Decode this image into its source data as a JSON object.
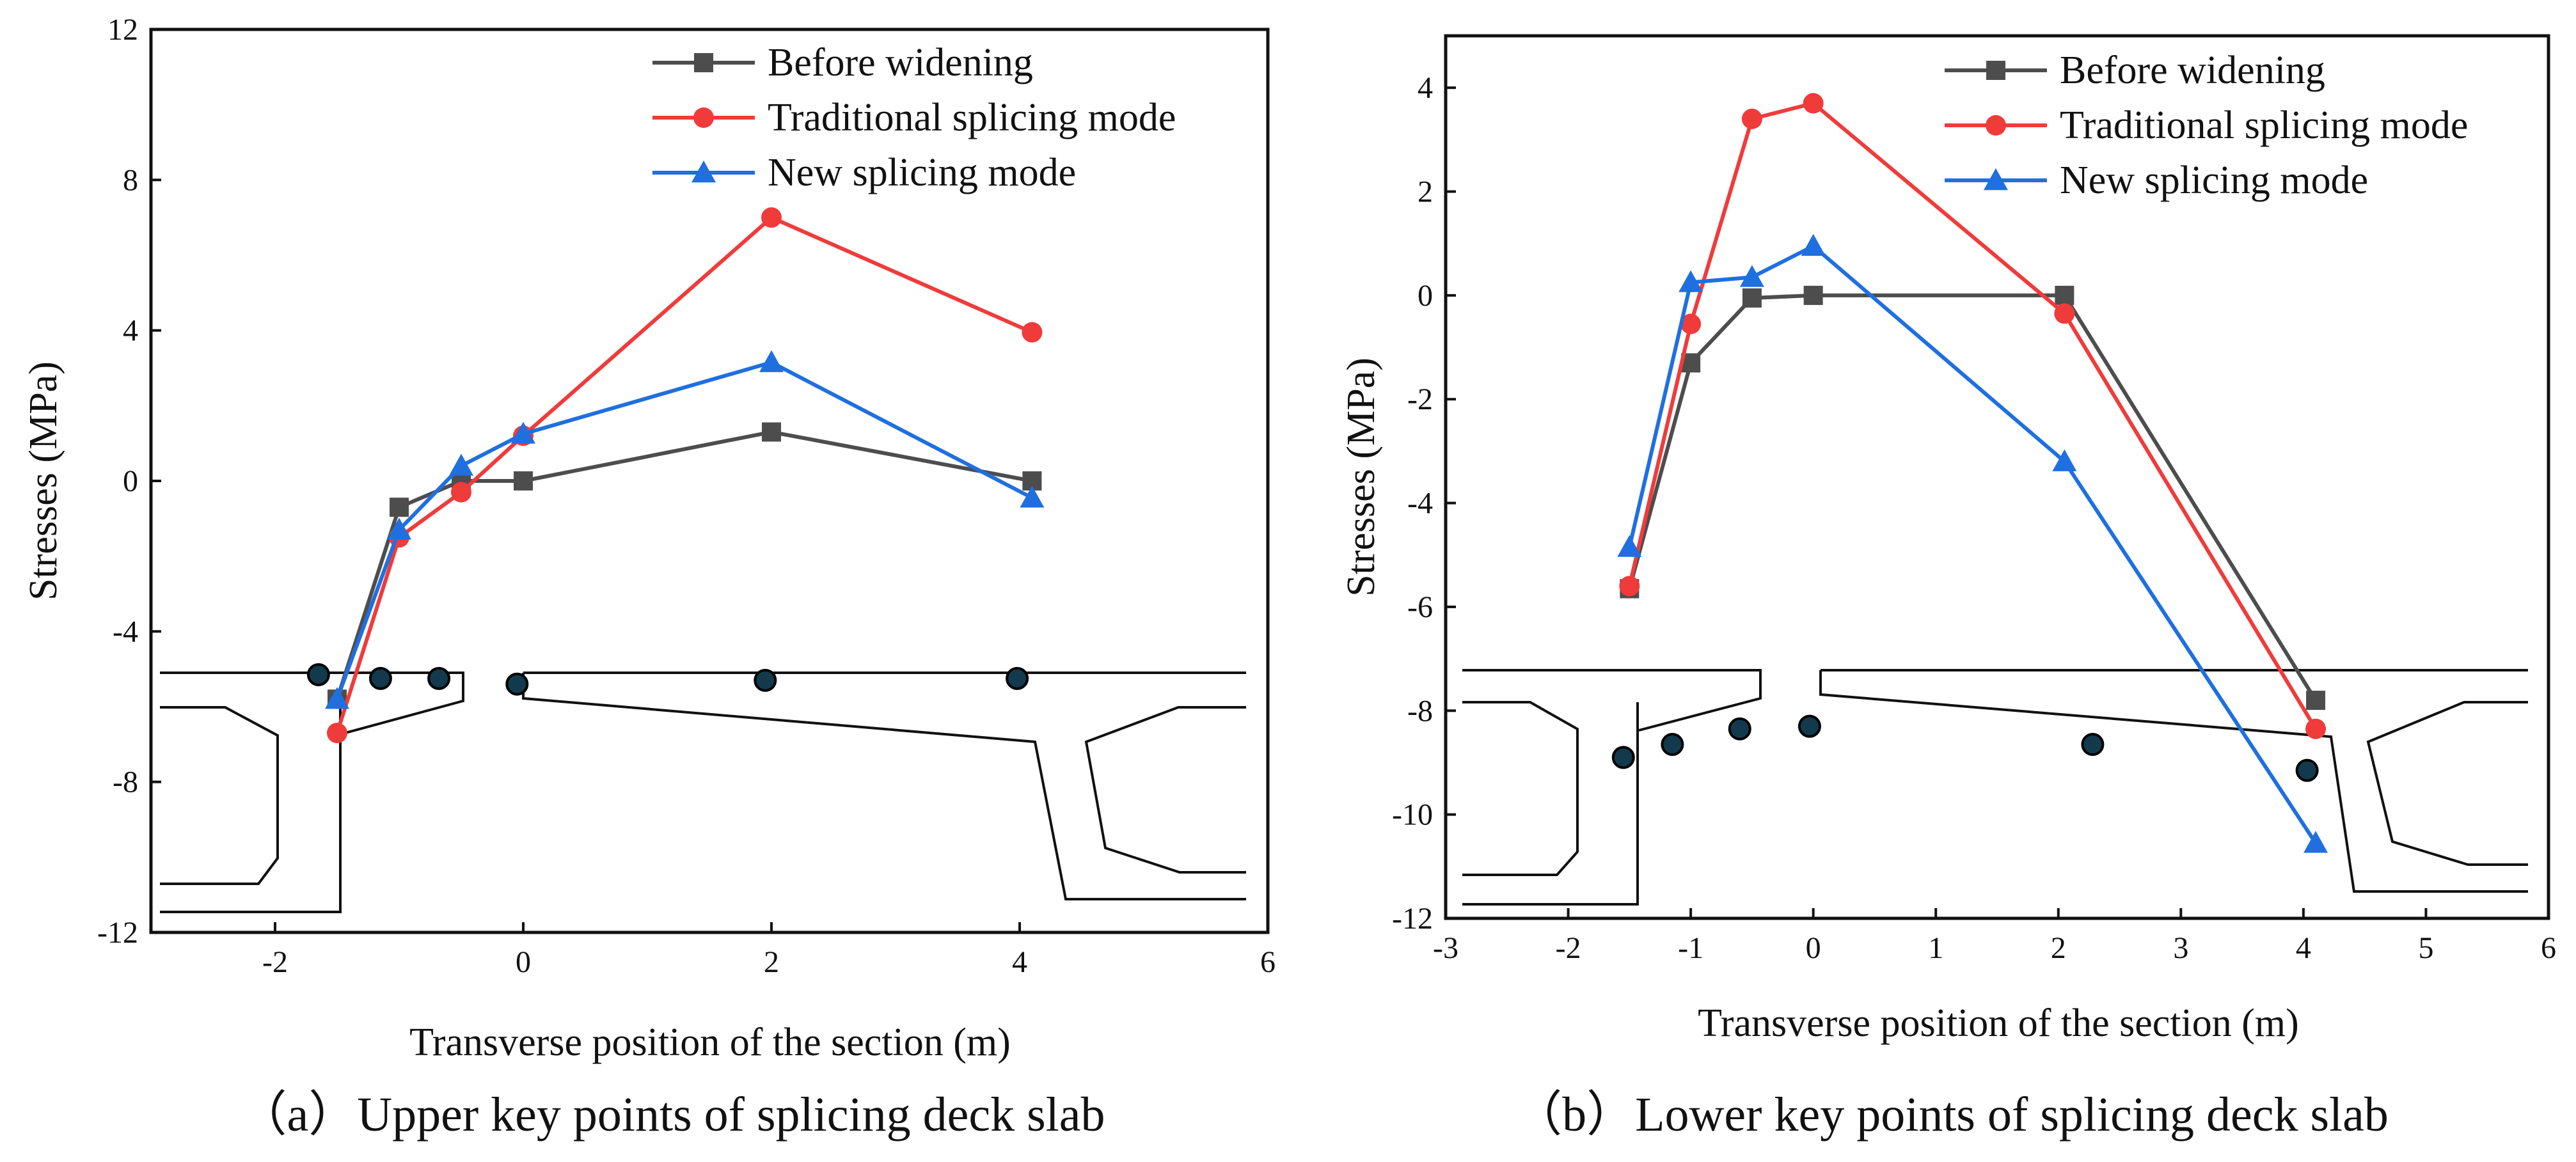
{
  "figure": {
    "captions": [
      "（a）Upper key points of splicing deck slab",
      "（b）Lower key points of splicing deck slab"
    ]
  },
  "colors": {
    "before": "#4d4d4d",
    "traditional": "#f03b3b",
    "new": "#1f6fe0",
    "marker_fill": "#123a4c",
    "outline": "#111111"
  },
  "chart_data": [
    {
      "type": "line",
      "title": "（a）Upper key points of splicing deck slab",
      "xlabel": "Transverse position of the section (m)",
      "ylabel": "Stresses (MPa)",
      "xlim": [
        -3,
        6
      ],
      "ylim": [
        -12,
        12
      ],
      "xticks": [
        -2,
        0,
        2,
        4,
        6
      ],
      "yticks": [
        -12,
        -8,
        -4,
        0,
        4,
        8,
        12
      ],
      "x_tick_labels": [
        "-2",
        "0",
        "2",
        "4",
        "6"
      ],
      "y_tick_labels": [
        "-12",
        "-8",
        "-4",
        "0",
        "4",
        "8",
        "12"
      ],
      "legend_position": "top-right",
      "series": [
        {
          "name": "Before widening",
          "marker": "square",
          "color_key": "before",
          "x": [
            -1.5,
            -1.0,
            -0.5,
            0.0,
            2.0,
            4.1
          ],
          "y": [
            -5.8,
            -0.7,
            0.0,
            0.0,
            1.3,
            0.0
          ]
        },
        {
          "name": "Traditional splicing mode",
          "marker": "circle",
          "color_key": "traditional",
          "x": [
            -1.5,
            -1.0,
            -0.5,
            0.0,
            2.0,
            4.1
          ],
          "y": [
            -6.7,
            -1.5,
            -0.3,
            1.2,
            7.0,
            3.95
          ]
        },
        {
          "name": "New splicing mode",
          "marker": "triangle",
          "color_key": "new",
          "x": [
            -1.5,
            -1.0,
            -0.5,
            0.0,
            2.0,
            4.1
          ],
          "y": [
            -5.8,
            -1.3,
            0.4,
            1.25,
            3.15,
            -0.45
          ]
        }
      ],
      "key_points": {
        "x": [
          -1.65,
          -1.15,
          -0.68,
          -0.05,
          1.95,
          3.98
        ],
        "y": [
          -5.15,
          -5.25,
          -5.25,
          -5.4,
          -5.3,
          -5.25
        ]
      }
    },
    {
      "type": "line",
      "title": "（b）Lower key points of splicing deck slab",
      "xlabel": "Transverse position of the section (m)",
      "ylabel": "Stresses (MPa)",
      "xlim": [
        -3,
        6
      ],
      "ylim": [
        -12,
        5
      ],
      "xticks": [
        -3,
        -2,
        -1,
        0,
        1,
        2,
        3,
        4,
        5,
        6
      ],
      "yticks": [
        -12,
        -10,
        -8,
        -6,
        -4,
        -2,
        0,
        2,
        4
      ],
      "x_tick_labels": [
        "-3",
        "-2",
        "-1",
        "0",
        "1",
        "2",
        "3",
        "4",
        "5",
        "6"
      ],
      "y_tick_labels": [
        "-12",
        "-10",
        "-8",
        "-6",
        "-4",
        "-2",
        "0",
        "2",
        "4"
      ],
      "legend_position": "top-right",
      "series": [
        {
          "name": "Before widening",
          "marker": "square",
          "color_key": "before",
          "x": [
            -1.5,
            -1.0,
            -0.5,
            0.0,
            2.05,
            4.1
          ],
          "y": [
            -5.65,
            -1.3,
            -0.05,
            0.0,
            0.0,
            -7.8
          ]
        },
        {
          "name": "Traditional splicing mode",
          "marker": "circle",
          "color_key": "traditional",
          "x": [
            -1.5,
            -1.0,
            -0.5,
            0.0,
            2.05,
            4.1
          ],
          "y": [
            -5.6,
            -0.55,
            3.4,
            3.7,
            -0.35,
            -8.35
          ]
        },
        {
          "name": "New splicing mode",
          "marker": "triangle",
          "color_key": "new",
          "x": [
            -1.5,
            -1.0,
            -0.5,
            0.0,
            2.05,
            4.1
          ],
          "y": [
            -4.85,
            0.25,
            0.35,
            0.95,
            -3.2,
            -10.55
          ]
        }
      ],
      "key_points": {
        "x": [
          -1.55,
          -1.15,
          -0.6,
          -0.03,
          2.28,
          4.03
        ],
        "y": [
          -8.9,
          -8.65,
          -8.35,
          -8.3,
          -8.65,
          -9.15
        ]
      }
    }
  ]
}
